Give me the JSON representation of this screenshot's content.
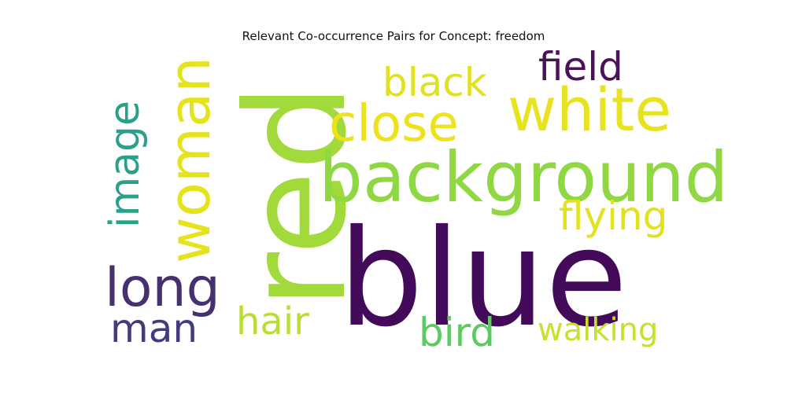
{
  "title": "Relevant Co-occurrence Pairs for Concept: freedom",
  "words": {
    "blue": {
      "text": "blue",
      "color": "#440a5a"
    },
    "red": {
      "text": "red",
      "color": "#a1da3a"
    },
    "background": {
      "text": "background",
      "color": "#8fd743"
    },
    "white": {
      "text": "white",
      "color": "#e8e31f"
    },
    "close": {
      "text": "close",
      "color": "#eee21c"
    },
    "black": {
      "text": "black",
      "color": "#e0e11f"
    },
    "field": {
      "text": "field",
      "color": "#4b125b"
    },
    "flying": {
      "text": "flying",
      "color": "#e2e21f"
    },
    "woman": {
      "text": "woman",
      "color": "#e5e21e"
    },
    "image": {
      "text": "image",
      "color": "#2aa08a"
    },
    "long": {
      "text": "long",
      "color": "#46306f"
    },
    "man": {
      "text": "man",
      "color": "#413d7d"
    },
    "hair": {
      "text": "hair",
      "color": "#b9dd35"
    },
    "bird": {
      "text": "bird",
      "color": "#5ec962"
    },
    "walking": {
      "text": "walking",
      "color": "#c8e02e"
    }
  }
}
